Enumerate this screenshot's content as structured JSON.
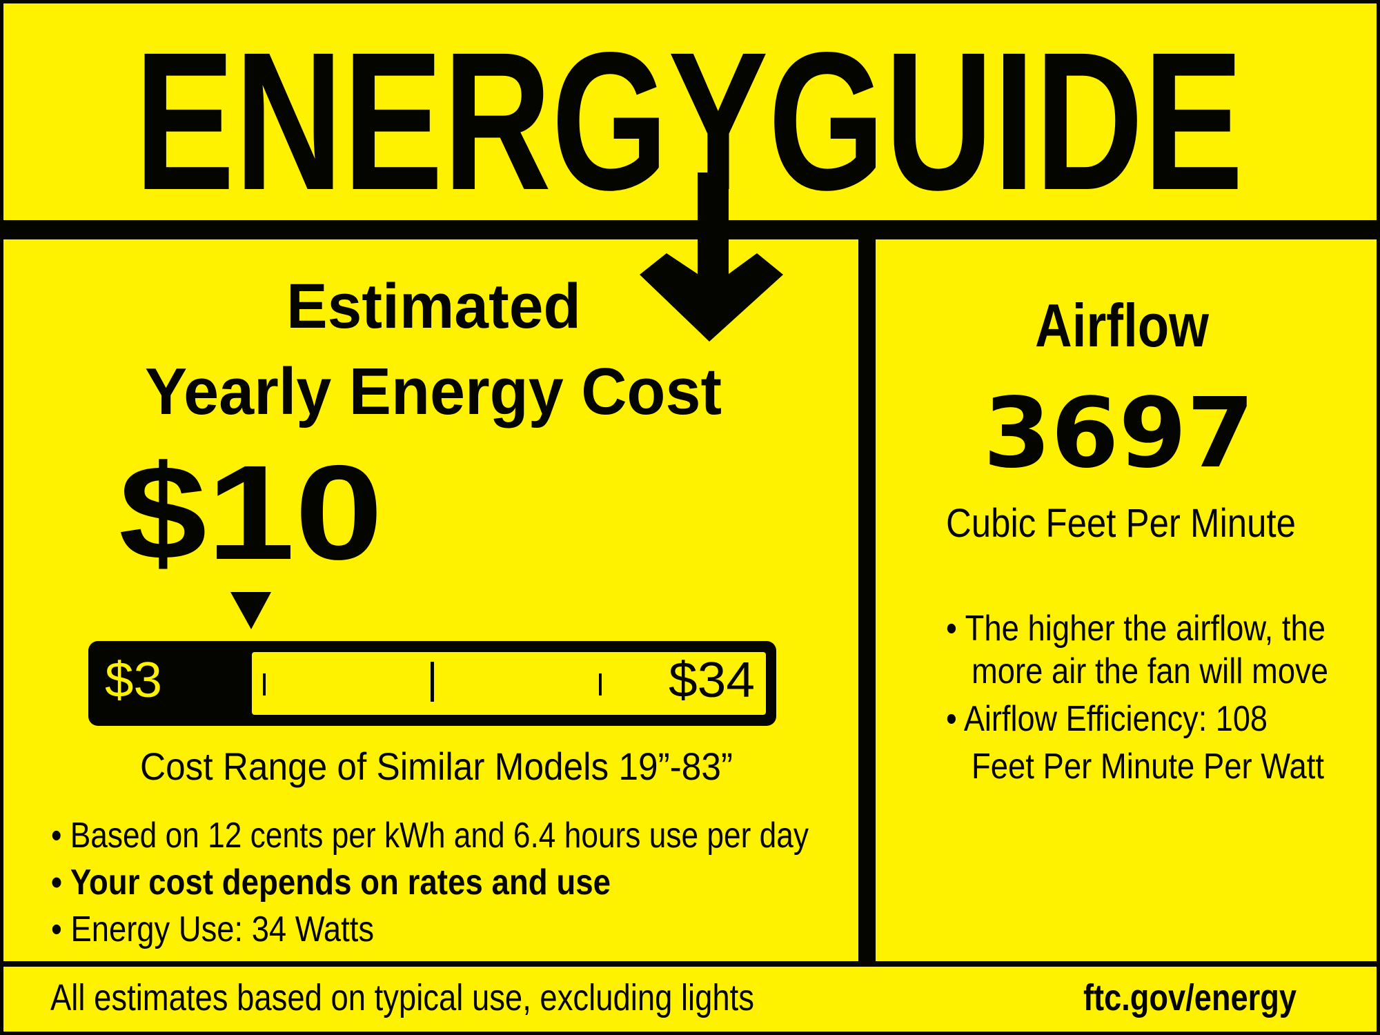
{
  "colors": {
    "background": "#fff200",
    "ink": "#050500"
  },
  "header": {
    "title": "ENERGYGUIDE"
  },
  "cost": {
    "heading_line1": "Estimated",
    "heading_line2": "Yearly Energy Cost",
    "value": "$10",
    "range_min": "$3",
    "range_max": "$34",
    "marker_value": 10,
    "range_caption": "Cost Range of Similar Models 19”-83”",
    "bullets": [
      "• Based on 12 cents per kWh and 6.4 hours use per day",
      "• Your cost depends on rates and use",
      "• Energy Use: 34 Watts"
    ]
  },
  "airflow": {
    "heading": "Airflow",
    "value": "3697",
    "unit": "Cubic Feet Per Minute",
    "bullets": [
      "• The higher the airflow, the",
      "more air the fan will move",
      "• Airflow Efficiency: 108",
      "Feet Per Minute Per Watt"
    ]
  },
  "footer": {
    "note": "All estimates based on typical use, excluding lights",
    "link": "ftc.gov/energy"
  }
}
